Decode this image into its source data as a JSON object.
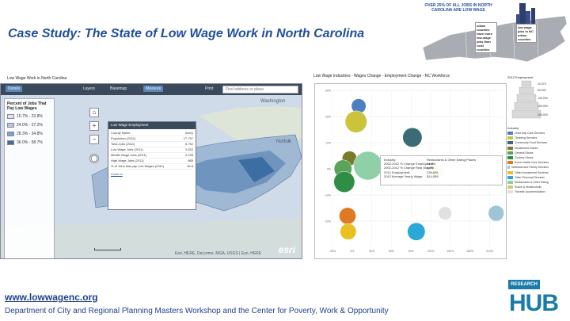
{
  "slide": {
    "title": "Case Study: The State of Low Wage Work in North Carolina",
    "footer_url": "www.lowwagenc.org",
    "footer_dept": "Department of City and Regional Planning Masters Workshop and the Center for Poverty, Work & Opportunity"
  },
  "nc_graphic": {
    "banner": "OVER 25% OF ALL JOBS IN NORTH CAROLINA ARE LOW WAGE",
    "callout_left": "urban counties have more low-wage jobs than rural counties",
    "callout_right": "low wage jobs in NC urban counties"
  },
  "hub_logo": {
    "top": "RESEARCH",
    "main": "HUB"
  },
  "map_panel": {
    "label": "Low Wage Work in North Carolina",
    "toolbar": {
      "app_button": "Details",
      "layers": "Layers",
      "basemap": "Basemap",
      "measure": "Measure",
      "print": "Print",
      "search_placeholder": "Find address or place"
    },
    "legend": {
      "title": "Percent of Jobs That Pay Low Wages",
      "items": [
        {
          "label": "15.7% - 23.8%",
          "color": "#dbe6f2"
        },
        {
          "label": "24.0% - 27.2%",
          "color": "#b4c9e0"
        },
        {
          "label": "28.3% - 34.8%",
          "color": "#7ea3c8"
        },
        {
          "label": "36.0% - 58.7%",
          "color": "#3d6ea3"
        }
      ]
    },
    "popup": {
      "title": "Low Wage Employment",
      "rows": [
        {
          "k": "County Name",
          "v": "Avery"
        },
        {
          "k": "Population (2011)",
          "v": "17,797"
        },
        {
          "k": "Total Jobs (2011)",
          "v": "5,752"
        },
        {
          "k": "Low Wage Jobs (2011)",
          "v": "2,632"
        },
        {
          "k": "Middle Wage Jobs (2011)",
          "v": "2,235"
        },
        {
          "k": "High Wage Jobs (2011)",
          "v": "885"
        },
        {
          "k": "% of Jobs that pay Low Wages (2011)",
          "v": "45.8"
        }
      ],
      "zoom_link": "Zoom to"
    },
    "labels": {
      "washington": "Washington",
      "norfolk": "Norfolk"
    },
    "attribution": "Esri, HERE, DeLorme, MGA, USGS | Esri, HERE",
    "esri": "esri"
  },
  "chart_panel": {
    "label": "Low Wage Industries - Wages Change - Employment Change - NC Workforce",
    "pyramid_title": "2012 Employment",
    "pyramid_values": [
      "10,370",
      "50,000",
      "100,000",
      "150,000",
      "200,000"
    ],
    "industry_title": "Industry",
    "tooltip": {
      "left": [
        "Industry:",
        "2002-2012 % Change Employment:",
        "2002-2012 % Change Real Wages:",
        "2012 Employment:",
        "2012 Average Yearly Wage:"
      ],
      "right": [
        "Restaurants & Other Eating Places",
        "24.0%",
        "1.2%",
        "236,826",
        "$14,059"
      ]
    }
  },
  "chart_data": {
    "type": "scatter",
    "title": "",
    "xlabel": "",
    "ylabel": "",
    "xlim": [
      -30,
      230
    ],
    "ylim": [
      -30,
      30
    ],
    "series": [
      {
        "points": [
          {
            "x": 10,
            "y": 24,
            "size": 40000,
            "color": "#4b7fbf"
          },
          {
            "x": 6,
            "y": 18,
            "size": 120000,
            "color": "#c9c43a"
          },
          {
            "x": 92,
            "y": 12,
            "size": 90000,
            "color": "#3b6b74"
          },
          {
            "x": -4,
            "y": 4,
            "size": 40000,
            "color": "#7a7a2e"
          },
          {
            "x": 24,
            "y": 1.2,
            "size": 236826,
            "color": "#8fd0a8"
          },
          {
            "x": -14,
            "y": 0,
            "size": 70000,
            "color": "#5aa35a"
          },
          {
            "x": -12,
            "y": -5,
            "size": 110000,
            "color": "#2f8e45"
          },
          {
            "x": 130,
            "y": -1,
            "size": 30000,
            "color": "#c8d060"
          },
          {
            "x": -7,
            "y": -18,
            "size": 60000,
            "color": "#e07a22"
          },
          {
            "x": 220,
            "y": -17,
            "size": 50000,
            "color": "#9fc4d6"
          },
          {
            "x": -6,
            "y": -24,
            "size": 55000,
            "color": "#e8c020"
          },
          {
            "x": 98,
            "y": -24,
            "size": 70000,
            "color": "#2aa8d8"
          },
          {
            "x": 142,
            "y": -17,
            "size": 30000,
            "color": "#e0e0e0"
          }
        ]
      }
    ],
    "grid": true,
    "ytick_labels": [
      "30%",
      "20%",
      "10%",
      "0%",
      "-10%",
      "-20%"
    ],
    "xtick_labels": [
      "-30%",
      "0%",
      "30%",
      "60%",
      "90%",
      "120%",
      "150%",
      "180%",
      "210%"
    ],
    "industries": [
      {
        "name": "Child Day Care Services",
        "color": "#4b7fbf"
      },
      {
        "name": "Cleaning Services",
        "color": "#c9c43a"
      },
      {
        "name": "Community Food Services",
        "color": "#3b6b74"
      },
      {
        "name": "Department Stores",
        "color": "#7a7a2e"
      },
      {
        "name": "General Stores",
        "color": "#5aa35a"
      },
      {
        "name": "Grocery Stores",
        "color": "#2f8e45"
      },
      {
        "name": "Home Health Care Services",
        "color": "#e07a22"
      },
      {
        "name": "Individual and Family Services",
        "color": "#9fc4d6"
      },
      {
        "name": "Other Amusement Services",
        "color": "#e8c020"
      },
      {
        "name": "Other Personal Services",
        "color": "#2aa8d8"
      },
      {
        "name": "Restaurants & Other Eating",
        "color": "#8fd0a8"
      },
      {
        "name": "Snack & Nonalcoholic",
        "color": "#c8d060"
      },
      {
        "name": "Traveler Accommodation",
        "color": "#e0e0e0"
      }
    ]
  }
}
